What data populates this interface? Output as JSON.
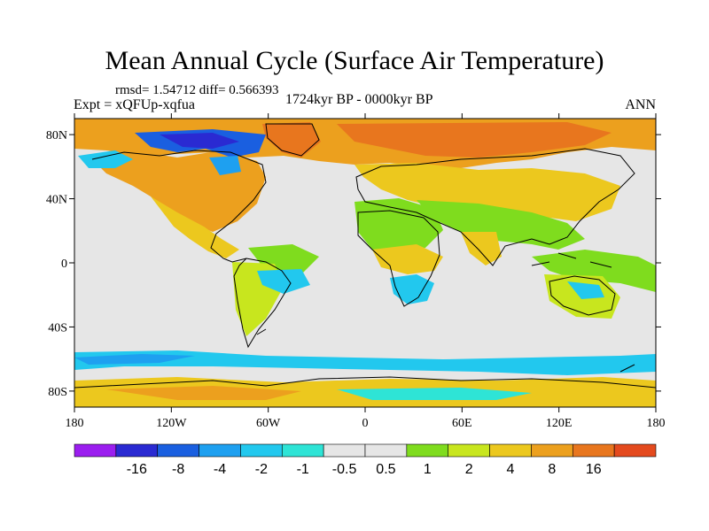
{
  "title": "Mean Annual Cycle (Surface Air Temperature)",
  "stats": "rmsd= 1.54712 diff= 0.566393",
  "experiment": "Expt = xQFUp-xqfua",
  "period": "1724kyr BP - 0000kyr BP",
  "season": "ANN",
  "map": {
    "land_neutral_color": "#e6e6e6",
    "lat_ticks": [
      "80N",
      "40N",
      "0",
      "40S",
      "80S"
    ],
    "lat_values": [
      80,
      40,
      0,
      -40,
      -80
    ],
    "lon_ticks": [
      "180",
      "120W",
      "60W",
      "0",
      "60E",
      "120E",
      "180"
    ],
    "lon_values": [
      -180,
      -120,
      -60,
      0,
      60,
      120,
      180
    ]
  },
  "colorbar": {
    "colors": [
      "#9b1eef",
      "#2a2ad2",
      "#1a5fe0",
      "#1ea0f0",
      "#22c8ee",
      "#2ee4d6",
      "#e6e6e6",
      "#e6e6e6",
      "#7fdc1e",
      "#c8e61e",
      "#ecc81e",
      "#eca01e",
      "#e8761e",
      "#e44a1e"
    ],
    "labels": [
      "-16",
      "-8",
      "-4",
      "-2",
      "-1",
      "-0.5",
      "0.5",
      "1",
      "2",
      "4",
      "8",
      "16"
    ]
  }
}
